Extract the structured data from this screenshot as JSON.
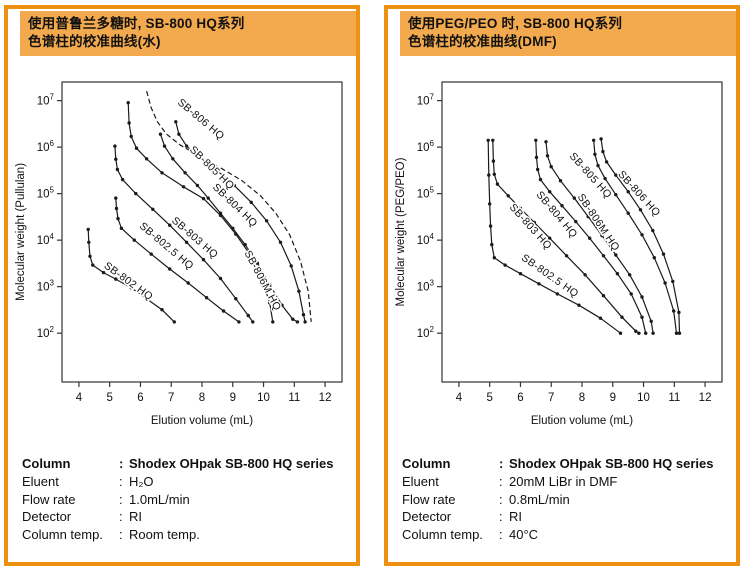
{
  "colors": {
    "panel_border": "#EE9110",
    "header_bg": "#F3AA4E",
    "text": "#111111",
    "curve": "#1a1a1a",
    "axis": "#333333"
  },
  "colon": ":",
  "panels": [
    {
      "header": {
        "line1": "使用普鲁兰多糖时, SB-800 HQ系列",
        "line2": "色谱柱的校准曲线(水)"
      },
      "specs": [
        {
          "label": "Column",
          "value": "Shodex OHpak SB-800 HQ series",
          "bold": true
        },
        {
          "label": "Eluent",
          "value": "H₂O",
          "bold": false
        },
        {
          "label": "Flow rate",
          "value": "1.0mL/min",
          "bold": false
        },
        {
          "label": "Detector",
          "value": "RI",
          "bold": false
        },
        {
          "label": "Column temp.",
          "value": "Room temp.",
          "bold": false
        }
      ]
    },
    {
      "header": {
        "line1": "使用PEG/PEO 时, SB-800 HQ系列",
        "line2": "色谱柱的校准曲线(DMF)"
      },
      "specs": [
        {
          "label": "Column",
          "value": "Shodex OHpak SB-800 HQ series",
          "bold": true
        },
        {
          "label": "Eluent",
          "value": "20mM LiBr in DMF",
          "bold": false
        },
        {
          "label": "Flow rate",
          "value": "0.8mL/min",
          "bold": false
        },
        {
          "label": "Detector",
          "value": "RI",
          "bold": false
        },
        {
          "label": "Column temp.",
          "value": "40°C",
          "bold": false
        }
      ]
    }
  ],
  "chart_data": [
    {
      "type": "line",
      "title": "使用普鲁兰多糖时, SB-800 HQ系列 色谱柱的校准曲线(水)",
      "xlabel": "Elution volume (mL)",
      "ylabel": "Molecular weight (Pullulan)",
      "x_ticks": [
        4,
        5,
        6,
        7,
        8,
        9,
        10,
        11,
        12
      ],
      "y_tick_exponents": [
        2,
        3,
        4,
        5,
        6,
        7
      ],
      "xlim": [
        3.45,
        12.55
      ],
      "ylim_exp": [
        0.95,
        7.4
      ],
      "grid": false,
      "series": [
        {
          "name": "SB-802 HQ",
          "dashed": false,
          "markers": true,
          "label": {
            "x": 5.55,
            "y": 1150,
            "angle": 36
          },
          "points": [
            [
              4.3,
              17000
            ],
            [
              4.32,
              9000
            ],
            [
              4.36,
              4500
            ],
            [
              4.45,
              2900
            ],
            [
              4.8,
              2000
            ],
            [
              5.2,
              1450
            ],
            [
              5.7,
              950
            ],
            [
              6.2,
              550
            ],
            [
              6.7,
              320
            ],
            [
              7.1,
              175
            ]
          ]
        },
        {
          "name": "SB-802.5 HQ",
          "dashed": false,
          "markers": true,
          "label": {
            "x": 6.78,
            "y": 6600,
            "angle": 40
          },
          "points": [
            [
              5.2,
              80000
            ],
            [
              5.22,
              48000
            ],
            [
              5.27,
              29000
            ],
            [
              5.38,
              18000
            ],
            [
              5.8,
              10000
            ],
            [
              6.35,
              5000
            ],
            [
              6.95,
              2400
            ],
            [
              7.55,
              1200
            ],
            [
              8.15,
              580
            ],
            [
              8.7,
              300
            ],
            [
              9.2,
              175
            ]
          ]
        },
        {
          "name": "SB-803 HQ",
          "dashed": false,
          "markers": true,
          "label": {
            "x": 7.7,
            "y": 10000,
            "angle": 41
          },
          "points": [
            [
              5.17,
              1050000
            ],
            [
              5.2,
              550000
            ],
            [
              5.25,
              330000
            ],
            [
              5.42,
              200000
            ],
            [
              5.85,
              100000
            ],
            [
              6.4,
              46000
            ],
            [
              6.95,
              21000
            ],
            [
              7.5,
              9000
            ],
            [
              8.05,
              3800
            ],
            [
              8.6,
              1500
            ],
            [
              9.1,
              550
            ],
            [
              9.5,
              240
            ],
            [
              9.65,
              175
            ]
          ]
        },
        {
          "name": "SB-804 HQ",
          "dashed": false,
          "markers": true,
          "label": {
            "x": 9.0,
            "y": 50000,
            "angle": 44
          },
          "points": [
            [
              5.6,
              9000000
            ],
            [
              5.63,
              3300000
            ],
            [
              5.7,
              1700000
            ],
            [
              5.87,
              950000
            ],
            [
              6.2,
              560000
            ],
            [
              6.7,
              280000
            ],
            [
              7.4,
              140000
            ],
            [
              8.05,
              78000
            ],
            [
              8.6,
              34000
            ],
            [
              9.1,
              13500
            ],
            [
              9.6,
              4500
            ],
            [
              9.95,
              1400
            ],
            [
              10.2,
              450
            ],
            [
              10.3,
              175
            ]
          ]
        },
        {
          "name": "SB-805 HQ",
          "dashed": false,
          "markers": true,
          "label": {
            "x": 8.25,
            "y": 320000,
            "angle": 44
          },
          "points": [
            [
              7.15,
              3500000
            ],
            [
              7.25,
              1900000
            ],
            [
              7.5,
              1050000
            ],
            [
              7.95,
              580000
            ],
            [
              8.5,
              310000
            ],
            [
              9.05,
              150000
            ],
            [
              9.6,
              65000
            ],
            [
              10.1,
              26000
            ],
            [
              10.55,
              9000
            ],
            [
              10.9,
              2800
            ],
            [
              11.15,
              800
            ],
            [
              11.3,
              250
            ],
            [
              11.35,
              175
            ]
          ]
        },
        {
          "name": "SB-806 HQ",
          "dashed": true,
          "markers": false,
          "label": {
            "x": 7.9,
            "y": 3500000,
            "angle": 40
          },
          "points": [
            [
              6.2,
              16000000
            ],
            [
              6.35,
              7000000
            ],
            [
              6.55,
              3500000
            ],
            [
              6.85,
              1900000
            ],
            [
              7.3,
              1100000
            ],
            [
              7.9,
              650000
            ],
            [
              8.6,
              360000
            ],
            [
              9.3,
              190000
            ],
            [
              9.9,
              90000
            ],
            [
              10.4,
              38000
            ],
            [
              10.85,
              13000
            ],
            [
              11.2,
              3500
            ],
            [
              11.45,
              800
            ],
            [
              11.55,
              175
            ]
          ]
        },
        {
          "name": "SB-806M HQ",
          "dashed": false,
          "markers": true,
          "label": {
            "x": 9.88,
            "y": 1250,
            "angle": 62
          },
          "points": [
            [
              6.65,
              1900000
            ],
            [
              6.78,
              1050000
            ],
            [
              7.05,
              560000
            ],
            [
              7.45,
              280000
            ],
            [
              7.85,
              150000
            ],
            [
              8.2,
              80000
            ],
            [
              8.6,
              38000
            ],
            [
              9.0,
              18000
            ],
            [
              9.4,
              8000
            ],
            [
              9.8,
              3200
            ],
            [
              10.2,
              1100
            ],
            [
              10.6,
              400
            ],
            [
              10.95,
              200
            ],
            [
              11.1,
              175
            ]
          ]
        }
      ]
    },
    {
      "type": "line",
      "title": "使用PEG/PEO 时, SB-800 HQ系列 色谱柱的校准曲线(DMF)",
      "xlabel": "Elution volume (mL)",
      "ylabel": "Molecular weight (PEG/PEO)",
      "x_ticks": [
        4,
        5,
        6,
        7,
        8,
        9,
        10,
        11,
        12
      ],
      "y_tick_exponents": [
        2,
        3,
        4,
        5,
        6,
        7
      ],
      "xlim": [
        3.45,
        12.55
      ],
      "ylim_exp": [
        0.95,
        7.4
      ],
      "grid": false,
      "series": [
        {
          "name": "SB-802.5 HQ",
          "dashed": false,
          "markers": true,
          "label": {
            "x": 6.9,
            "y": 1500,
            "angle": 35
          },
          "points": [
            [
              4.95,
              1400000
            ],
            [
              4.97,
              250000
            ],
            [
              5.0,
              60000
            ],
            [
              5.03,
              20000
            ],
            [
              5.07,
              8000
            ],
            [
              5.15,
              4200
            ],
            [
              5.5,
              2900
            ],
            [
              6.0,
              1900
            ],
            [
              6.6,
              1150
            ],
            [
              7.2,
              700
            ],
            [
              7.9,
              400
            ],
            [
              8.6,
              210
            ],
            [
              9.25,
              100
            ]
          ]
        },
        {
          "name": "SB-803 HQ",
          "dashed": false,
          "markers": true,
          "label": {
            "x": 6.25,
            "y": 17500,
            "angle": 48
          },
          "points": [
            [
              5.1,
              1400000
            ],
            [
              5.12,
              500000
            ],
            [
              5.15,
              260000
            ],
            [
              5.25,
              160000
            ],
            [
              5.6,
              90000
            ],
            [
              6.0,
              48000
            ],
            [
              6.45,
              24000
            ],
            [
              6.95,
              11000
            ],
            [
              7.5,
              4600
            ],
            [
              8.1,
              1800
            ],
            [
              8.7,
              640
            ],
            [
              9.3,
              220
            ],
            [
              9.75,
              110
            ],
            [
              9.85,
              100
            ]
          ]
        },
        {
          "name": "SB-804 HQ",
          "dashed": false,
          "markers": true,
          "label": {
            "x": 7.1,
            "y": 32000,
            "angle": 50
          },
          "points": [
            [
              6.5,
              1400000
            ],
            [
              6.52,
              600000
            ],
            [
              6.56,
              330000
            ],
            [
              6.65,
              200000
            ],
            [
              6.95,
              110000
            ],
            [
              7.35,
              55000
            ],
            [
              7.8,
              25000
            ],
            [
              8.25,
              11000
            ],
            [
              8.7,
              4600
            ],
            [
              9.15,
              1900
            ],
            [
              9.6,
              700
            ],
            [
              9.95,
              220
            ],
            [
              10.07,
              100
            ]
          ]
        },
        {
          "name": "SB-806M HQ",
          "dashed": false,
          "markers": true,
          "label": {
            "x": 8.45,
            "y": 22000,
            "angle": 56
          },
          "points": [
            [
              6.83,
              1300000
            ],
            [
              6.88,
              650000
            ],
            [
              7.0,
              380000
            ],
            [
              7.3,
              190000
            ],
            [
              7.75,
              80000
            ],
            [
              8.2,
              32000
            ],
            [
              8.65,
              12500
            ],
            [
              9.1,
              4800
            ],
            [
              9.55,
              1800
            ],
            [
              9.95,
              600
            ],
            [
              10.25,
              180
            ],
            [
              10.31,
              100
            ]
          ]
        },
        {
          "name": "SB-805 HQ",
          "dashed": false,
          "markers": true,
          "label": {
            "x": 8.2,
            "y": 220000,
            "angle": 48
          },
          "points": [
            [
              8.38,
              1400000
            ],
            [
              8.42,
              700000
            ],
            [
              8.52,
              400000
            ],
            [
              8.75,
              210000
            ],
            [
              9.1,
              95000
            ],
            [
              9.5,
              38000
            ],
            [
              9.95,
              13000
            ],
            [
              10.35,
              4200
            ],
            [
              10.7,
              1200
            ],
            [
              10.98,
              300
            ],
            [
              11.07,
              100
            ]
          ]
        },
        {
          "name": "SB-806 HQ",
          "dashed": false,
          "markers": true,
          "label": {
            "x": 9.78,
            "y": 90000,
            "angle": 48
          },
          "points": [
            [
              8.62,
              1500000
            ],
            [
              8.68,
              800000
            ],
            [
              8.8,
              480000
            ],
            [
              9.1,
              250000
            ],
            [
              9.5,
              110000
            ],
            [
              9.9,
              45000
            ],
            [
              10.3,
              16000
            ],
            [
              10.65,
              5000
            ],
            [
              10.95,
              1300
            ],
            [
              11.15,
              280
            ],
            [
              11.17,
              100
            ]
          ]
        }
      ]
    }
  ]
}
